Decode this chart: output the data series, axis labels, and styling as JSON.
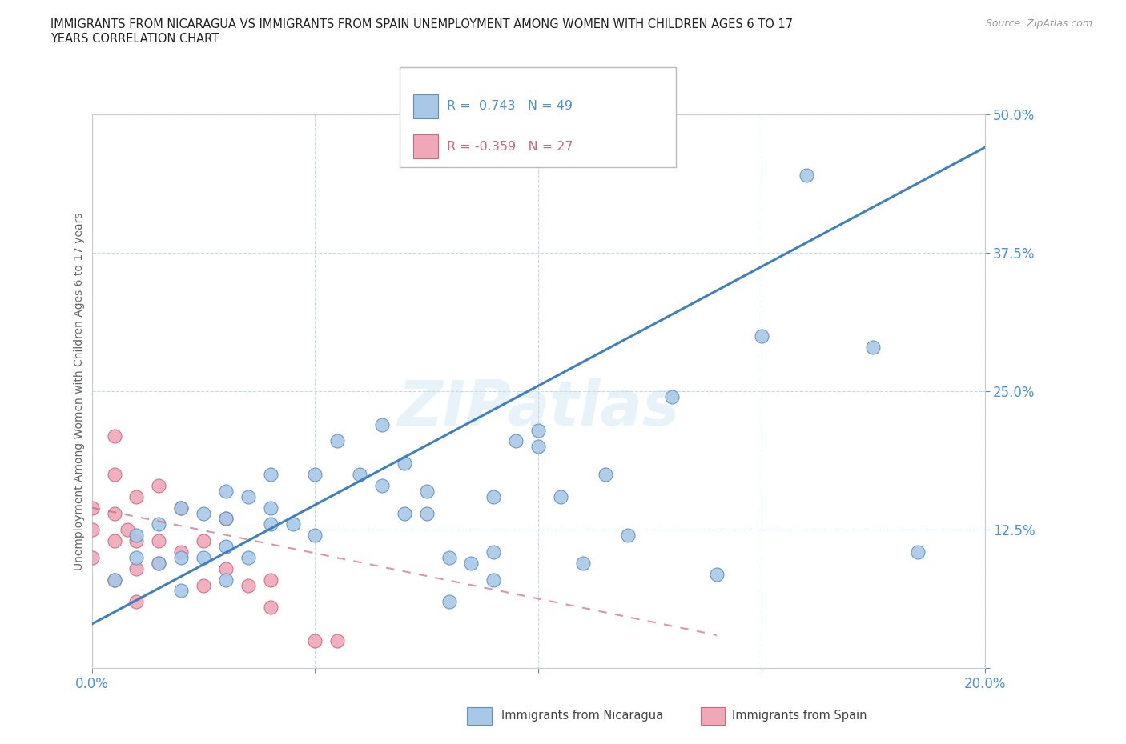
{
  "title": "IMMIGRANTS FROM NICARAGUA VS IMMIGRANTS FROM SPAIN UNEMPLOYMENT AMONG WOMEN WITH CHILDREN AGES 6 TO 17\nYEARS CORRELATION CHART",
  "source": "Source: ZipAtlas.com",
  "ylabel": "Unemployment Among Women with Children Ages 6 to 17 years",
  "xlim": [
    0,
    0.2
  ],
  "ylim": [
    0,
    0.5
  ],
  "xticks": [
    0.0,
    0.05,
    0.1,
    0.15,
    0.2
  ],
  "yticks": [
    0.0,
    0.125,
    0.25,
    0.375,
    0.5
  ],
  "xtick_labels": [
    "0.0%",
    "",
    "",
    "",
    "20.0%"
  ],
  "ytick_labels": [
    "",
    "12.5%",
    "25.0%",
    "37.5%",
    "50.0%"
  ],
  "nicaragua_color": "#a8c8e8",
  "spain_color": "#f0a8b8",
  "nicaragua_edge": "#6090c0",
  "spain_edge": "#d06880",
  "line_nicaragua_color": "#4080c0",
  "line_spain_color": "#d06878",
  "R_nicaragua": 0.743,
  "N_nicaragua": 49,
  "R_spain": -0.359,
  "N_spain": 27,
  "background_color": "#ffffff",
  "grid_color": "#c8d8e8",
  "axis_color": "#4a90d9",
  "watermark": "ZIPatlas",
  "nicaragua_x": [
    0.005,
    0.01,
    0.01,
    0.015,
    0.015,
    0.02,
    0.02,
    0.02,
    0.025,
    0.025,
    0.03,
    0.03,
    0.03,
    0.03,
    0.035,
    0.035,
    0.04,
    0.04,
    0.04,
    0.045,
    0.05,
    0.05,
    0.055,
    0.06,
    0.065,
    0.065,
    0.07,
    0.07,
    0.075,
    0.075,
    0.08,
    0.08,
    0.085,
    0.09,
    0.09,
    0.1,
    0.1,
    0.105,
    0.11,
    0.115,
    0.12,
    0.13,
    0.14,
    0.15,
    0.16,
    0.175,
    0.185,
    0.09,
    0.095
  ],
  "nicaragua_y": [
    0.08,
    0.1,
    0.12,
    0.095,
    0.13,
    0.07,
    0.1,
    0.145,
    0.1,
    0.14,
    0.08,
    0.11,
    0.135,
    0.16,
    0.1,
    0.155,
    0.13,
    0.145,
    0.175,
    0.13,
    0.12,
    0.175,
    0.205,
    0.175,
    0.22,
    0.165,
    0.14,
    0.185,
    0.14,
    0.16,
    0.06,
    0.1,
    0.095,
    0.08,
    0.105,
    0.2,
    0.215,
    0.155,
    0.095,
    0.175,
    0.12,
    0.245,
    0.085,
    0.3,
    0.445,
    0.29,
    0.105,
    0.155,
    0.205
  ],
  "spain_x": [
    0.0,
    0.0,
    0.0,
    0.005,
    0.005,
    0.005,
    0.005,
    0.005,
    0.008,
    0.01,
    0.01,
    0.01,
    0.01,
    0.015,
    0.015,
    0.015,
    0.02,
    0.02,
    0.025,
    0.025,
    0.03,
    0.03,
    0.035,
    0.04,
    0.04,
    0.05,
    0.055
  ],
  "spain_y": [
    0.1,
    0.125,
    0.145,
    0.08,
    0.115,
    0.14,
    0.175,
    0.21,
    0.125,
    0.06,
    0.09,
    0.115,
    0.155,
    0.095,
    0.115,
    0.165,
    0.105,
    0.145,
    0.075,
    0.115,
    0.09,
    0.135,
    0.075,
    0.055,
    0.08,
    0.025,
    0.025
  ],
  "nic_line_x": [
    0.0,
    0.2
  ],
  "nic_line_y": [
    0.04,
    0.47
  ],
  "spain_line_x": [
    0.0,
    0.14
  ],
  "spain_line_y": [
    0.145,
    0.03
  ]
}
